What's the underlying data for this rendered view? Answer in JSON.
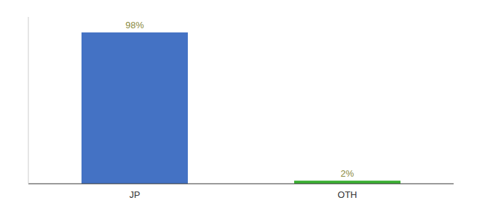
{
  "chart_data": {
    "type": "bar",
    "categories": [
      "JP",
      "OTH"
    ],
    "values": [
      98,
      2
    ],
    "value_labels": [
      "98%",
      "2%"
    ],
    "colors": [
      "#4472c4",
      "#3cb034"
    ],
    "ylim": [
      0,
      108
    ],
    "data_labels": true,
    "tick_labels": "x"
  }
}
